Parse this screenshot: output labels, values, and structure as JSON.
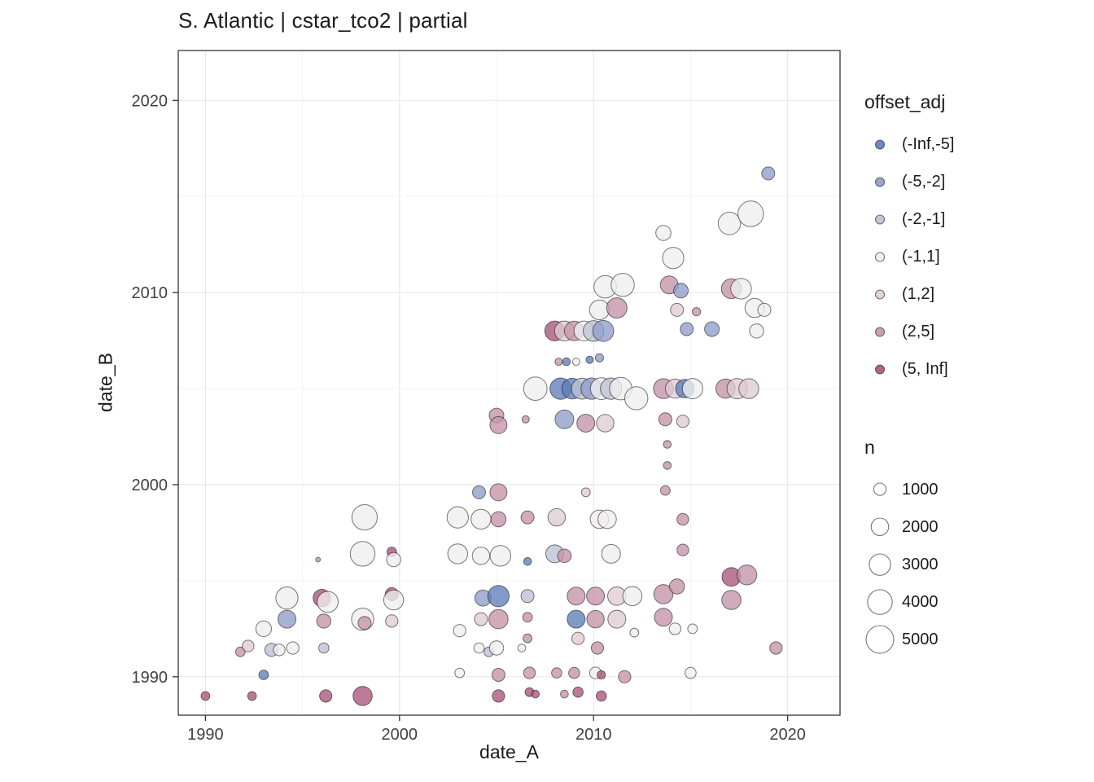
{
  "title": "S. Atlantic | cstar_tco2 | partial",
  "style": {
    "panel_border": "#333333",
    "panel_bg": "#ffffff",
    "grid_major": "#e8e8e8",
    "grid_minor": "#f4f4f4",
    "tick_color": "#333333",
    "tick_label_color": "#404040",
    "text_color": "#1a1a1a",
    "point_stroke": "rgba(30,30,30,0.6)",
    "point_fill_opacity": 0.78
  },
  "chart_data": {
    "type": "scatter",
    "title": "S. Atlantic | cstar_tco2 | partial",
    "xlabel": "date_A",
    "ylabel": "date_B",
    "xlim": [
      1988.6,
      2022.7
    ],
    "ylim": [
      1988.0,
      2022.6
    ],
    "xticks": [
      1990,
      2000,
      2010,
      2020
    ],
    "yticks": [
      1990,
      2000,
      2010,
      2020
    ],
    "minor_ticks": [
      1995,
      2005,
      2015
    ],
    "grid": "major+minor",
    "legend": {
      "color": {
        "title": "offset_adj",
        "labels": [
          "(-Inf,-5]",
          "(-5,-2]",
          "(-2,-1]",
          "(-1,1]",
          "(1,2]",
          "(2,5]",
          "(5, Inf]"
        ],
        "colors": [
          "#5e7db8",
          "#8e9cc9",
          "#bcc1d4",
          "#efeeee",
          "#dfccd3",
          "#c493a8",
          "#a9537b"
        ]
      },
      "size": {
        "title": "n",
        "values": [
          1000,
          2000,
          3000,
          4000,
          5000
        ]
      }
    },
    "size_scale": {
      "k": 0.24
    },
    "point_fields": [
      "date_A",
      "date_B",
      "n",
      "offset_adj_index"
    ],
    "points": [
      [
        1990.0,
        1989.0,
        500,
        6
      ],
      [
        1991.8,
        1991.3,
        600,
        5
      ],
      [
        1992.2,
        1991.6,
        900,
        4
      ],
      [
        1992.4,
        1989.0,
        500,
        6
      ],
      [
        1993.0,
        1990.1,
        600,
        0
      ],
      [
        1993.0,
        1992.5,
        1600,
        3
      ],
      [
        1993.4,
        1991.4,
        1100,
        2
      ],
      [
        1993.8,
        1991.4,
        900,
        3
      ],
      [
        1994.2,
        1994.1,
        3200,
        3
      ],
      [
        1994.2,
        1993.0,
        2100,
        1
      ],
      [
        1994.5,
        1991.5,
        1000,
        3
      ],
      [
        1996.0,
        1994.1,
        2000,
        6
      ],
      [
        1996.3,
        1993.9,
        2900,
        3
      ],
      [
        1996.1,
        1992.9,
        1300,
        5
      ],
      [
        1996.1,
        1991.5,
        700,
        2
      ],
      [
        1996.2,
        1989.0,
        1000,
        6
      ],
      [
        1995.8,
        1996.1,
        150,
        5
      ],
      [
        1998.2,
        1998.3,
        4200,
        3
      ],
      [
        1998.1,
        1996.4,
        4000,
        3
      ],
      [
        1998.1,
        1993.0,
        3200,
        3
      ],
      [
        1998.2,
        1992.8,
        1100,
        5
      ],
      [
        1998.1,
        1989.0,
        2400,
        6
      ],
      [
        1999.6,
        1996.5,
        600,
        6
      ],
      [
        1999.7,
        1996.1,
        1300,
        3
      ],
      [
        1999.6,
        1994.3,
        1100,
        6
      ],
      [
        1999.7,
        1994.0,
        2600,
        3
      ],
      [
        1999.6,
        1992.9,
        1000,
        4
      ],
      [
        2003.0,
        1998.3,
        3000,
        3
      ],
      [
        2003.0,
        1996.4,
        2600,
        3
      ],
      [
        2003.1,
        1992.4,
        1000,
        3
      ],
      [
        2003.1,
        1990.2,
        600,
        3
      ],
      [
        2004.1,
        1999.6,
        1100,
        1
      ],
      [
        2004.2,
        1998.2,
        2600,
        3
      ],
      [
        2004.2,
        1996.3,
        2000,
        3
      ],
      [
        2004.3,
        1994.1,
        1700,
        1
      ],
      [
        2004.2,
        1993.0,
        1100,
        4
      ],
      [
        2004.1,
        1991.5,
        700,
        3
      ],
      [
        2004.6,
        1991.3,
        600,
        2
      ],
      [
        2005.0,
        2003.6,
        1400,
        5
      ],
      [
        2005.1,
        2003.1,
        1900,
        5
      ],
      [
        2006.5,
        2003.4,
        350,
        5
      ],
      [
        2005.1,
        1999.6,
        1900,
        5
      ],
      [
        2005.1,
        1998.2,
        1500,
        5
      ],
      [
        2005.2,
        1996.3,
        2800,
        3
      ],
      [
        2005.1,
        1994.2,
        3000,
        0
      ],
      [
        2005.1,
        1993.0,
        2400,
        5
      ],
      [
        2005.0,
        1991.5,
        1300,
        3
      ],
      [
        2005.1,
        1990.1,
        1100,
        5
      ],
      [
        2005.1,
        1989.0,
        1000,
        6
      ],
      [
        2006.6,
        1998.3,
        1100,
        5
      ],
      [
        2006.6,
        1996.0,
        400,
        0
      ],
      [
        2006.6,
        1994.2,
        1100,
        2
      ],
      [
        2006.6,
        1993.1,
        600,
        5
      ],
      [
        2006.6,
        1992.0,
        500,
        5
      ],
      [
        2006.3,
        1991.5,
        400,
        3
      ],
      [
        2006.7,
        1990.2,
        900,
        5
      ],
      [
        2006.7,
        1989.2,
        500,
        6
      ],
      [
        2007.0,
        1989.1,
        400,
        6
      ],
      [
        2007.0,
        2005.0,
        3600,
        3
      ],
      [
        2008.3,
        2005.0,
        3000,
        0
      ],
      [
        2008.9,
        2005.0,
        2800,
        0
      ],
      [
        2009.4,
        2005.0,
        2900,
        2
      ],
      [
        2009.9,
        2005.0,
        3000,
        1
      ],
      [
        2010.4,
        2005.0,
        3100,
        3
      ],
      [
        2010.9,
        2005.0,
        3000,
        2
      ],
      [
        2011.4,
        2005.0,
        3300,
        3
      ],
      [
        2012.2,
        2004.5,
        3500,
        3
      ],
      [
        2008.0,
        2008.0,
        2600,
        6
      ],
      [
        2008.5,
        2008.0,
        2600,
        4
      ],
      [
        2009.0,
        2008.0,
        2500,
        5
      ],
      [
        2009.5,
        2008.0,
        2600,
        3
      ],
      [
        2010.0,
        2008.0,
        2800,
        2
      ],
      [
        2010.5,
        2008.0,
        2900,
        1
      ],
      [
        2008.2,
        2006.4,
        350,
        5
      ],
      [
        2008.6,
        2006.4,
        400,
        0
      ],
      [
        2009.1,
        2006.4,
        350,
        3
      ],
      [
        2009.8,
        2006.5,
        350,
        0
      ],
      [
        2010.3,
        2006.6,
        450,
        1
      ],
      [
        2008.5,
        2003.4,
        2300,
        1
      ],
      [
        2009.6,
        2003.2,
        2100,
        5
      ],
      [
        2010.6,
        2003.2,
        2000,
        4
      ],
      [
        2010.6,
        2010.3,
        3300,
        3
      ],
      [
        2011.5,
        2010.4,
        3500,
        3
      ],
      [
        2010.3,
        2009.1,
        2600,
        3
      ],
      [
        2011.2,
        2009.2,
        2700,
        5
      ],
      [
        2013.6,
        2013.1,
        1500,
        3
      ],
      [
        2014.1,
        2011.8,
        3000,
        3
      ],
      [
        2013.9,
        2010.4,
        2100,
        5
      ],
      [
        2014.5,
        2010.1,
        1400,
        1
      ],
      [
        2014.3,
        2009.1,
        1100,
        4
      ],
      [
        2015.3,
        2009.0,
        450,
        5
      ],
      [
        2014.8,
        2008.1,
        1100,
        1
      ],
      [
        2016.1,
        2008.1,
        1400,
        1
      ],
      [
        2017.1,
        2010.2,
        2600,
        5
      ],
      [
        2017.6,
        2010.2,
        2800,
        3
      ],
      [
        2018.3,
        2009.2,
        2400,
        3
      ],
      [
        2018.8,
        2009.1,
        1100,
        3
      ],
      [
        2018.4,
        2008.0,
        1300,
        3
      ],
      [
        2017.0,
        2013.6,
        3300,
        3
      ],
      [
        2018.1,
        2014.1,
        4300,
        3
      ],
      [
        2019.0,
        2016.2,
        1100,
        1
      ],
      [
        2013.6,
        2005.0,
        2600,
        5
      ],
      [
        2014.2,
        2005.0,
        2400,
        4
      ],
      [
        2014.7,
        2005.0,
        2200,
        0
      ],
      [
        2015.1,
        2005.0,
        2700,
        3
      ],
      [
        2016.8,
        2005.0,
        2400,
        5
      ],
      [
        2017.4,
        2005.0,
        2700,
        4
      ],
      [
        2018.0,
        2005.0,
        2600,
        4
      ],
      [
        2013.7,
        2003.4,
        1100,
        5
      ],
      [
        2014.6,
        2003.3,
        1000,
        4
      ],
      [
        2013.8,
        2002.1,
        400,
        5
      ],
      [
        2013.8,
        2001.0,
        400,
        5
      ],
      [
        2013.7,
        1999.7,
        600,
        5
      ],
      [
        2008.1,
        1998.3,
        2000,
        4
      ],
      [
        2008.0,
        1996.4,
        2100,
        2
      ],
      [
        2008.5,
        1996.3,
        1200,
        5
      ],
      [
        2009.6,
        1999.6,
        500,
        4
      ],
      [
        2010.3,
        1998.2,
        2200,
        3
      ],
      [
        2010.7,
        1998.2,
        2200,
        3
      ],
      [
        2010.9,
        1996.4,
        2300,
        3
      ],
      [
        2009.1,
        1994.2,
        2100,
        5
      ],
      [
        2009.1,
        1993.0,
        2100,
        0
      ],
      [
        2009.2,
        1992.0,
        1000,
        4
      ],
      [
        2008.1,
        1990.2,
        700,
        5
      ],
      [
        2009.0,
        1990.2,
        800,
        5
      ],
      [
        2009.2,
        1989.2,
        700,
        6
      ],
      [
        2008.5,
        1989.1,
        400,
        5
      ],
      [
        2010.1,
        1994.2,
        2100,
        5
      ],
      [
        2010.1,
        1993.0,
        2000,
        5
      ],
      [
        2010.2,
        1991.5,
        1000,
        5
      ],
      [
        2010.1,
        1990.2,
        900,
        3
      ],
      [
        2010.4,
        1990.1,
        450,
        6
      ],
      [
        2010.4,
        1989.0,
        700,
        6
      ],
      [
        2011.6,
        1990.0,
        1000,
        5
      ],
      [
        2011.2,
        1994.2,
        2200,
        4
      ],
      [
        2011.2,
        1993.0,
        2100,
        4
      ],
      [
        2012.0,
        1994.2,
        2400,
        3
      ],
      [
        2012.1,
        1992.3,
        500,
        3
      ],
      [
        2013.6,
        1994.3,
        2400,
        5
      ],
      [
        2013.6,
        1993.1,
        2100,
        5
      ],
      [
        2014.3,
        1994.7,
        1500,
        5
      ],
      [
        2014.2,
        1992.5,
        900,
        3
      ],
      [
        2015.1,
        1992.5,
        600,
        3
      ],
      [
        2014.6,
        1996.6,
        900,
        5
      ],
      [
        2014.6,
        1998.2,
        900,
        5
      ],
      [
        2015.0,
        1990.2,
        800,
        3
      ],
      [
        2017.1,
        1995.2,
        2300,
        6
      ],
      [
        2017.1,
        1994.0,
        2400,
        5
      ],
      [
        2017.9,
        1995.3,
        2600,
        5
      ],
      [
        2019.4,
        1991.5,
        1000,
        5
      ]
    ]
  }
}
